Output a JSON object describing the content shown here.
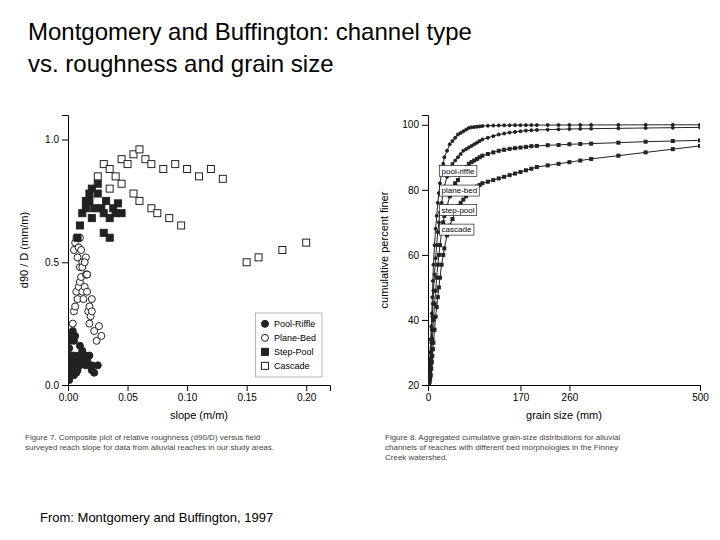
{
  "chart_data": [
    {
      "type": "scatter",
      "title": "Montgomery and Buffington: channel type\nvs. roughness and grain size",
      "caption": "Figure 7. Composite plot of relative roughness (d90/D) versus field\nsurveyed reach slope for data from alluvial reaches in our study areas.",
      "source": "From: Montgomery and Buffington, 1997",
      "x_label": "slope (m/m)",
      "y_label": "d90 / D (mm/m)",
      "xlim": [
        0.0,
        0.22
      ],
      "ylim": [
        0.0,
        1.1
      ],
      "xticks": [
        {
          "value": 0.0,
          "label": "0.00"
        },
        {
          "value": 0.05,
          "label": "0.05"
        },
        {
          "value": 0.1,
          "label": "0.10"
        },
        {
          "value": 0.15,
          "label": "0.15"
        },
        {
          "value": 0.2,
          "label": "0.20"
        }
      ],
      "yticks": [
        {
          "value": 0.0,
          "label": "0.0"
        },
        {
          "value": 0.5,
          "label": "0.5"
        },
        {
          "value": 1.0,
          "label": "1.0"
        }
      ],
      "grid": false,
      "legend": "lower-right",
      "series": [
        {
          "name": "Pool-Riffle",
          "color": "#222222",
          "marker": "circle",
          "x": [
            0.001,
            0.001,
            0.002,
            0.002,
            0.002,
            0.003,
            0.003,
            0.003,
            0.004,
            0.004,
            0.005,
            0.005,
            0.005,
            0.006,
            0.006,
            0.007,
            0.007,
            0.008,
            0.008,
            0.009,
            0.01,
            0.01,
            0.01,
            0.011,
            0.012,
            0.013,
            0.014,
            0.015,
            0.015,
            0.016,
            0.018,
            0.018,
            0.02,
            0.02,
            0.022,
            0.025,
            0.001,
            0.002,
            0.003,
            0.004,
            0.005,
            0.006
          ],
          "values": [
            0.02,
            0.04,
            0.06,
            0.08,
            0.1,
            0.05,
            0.08,
            0.12,
            0.06,
            0.1,
            0.04,
            0.08,
            0.12,
            0.06,
            0.1,
            0.05,
            0.08,
            0.06,
            0.1,
            0.12,
            0.08,
            0.12,
            0.16,
            0.1,
            0.14,
            0.1,
            0.12,
            0.08,
            0.12,
            0.1,
            0.08,
            0.12,
            0.06,
            0.08,
            0.05,
            0.08,
            0.15,
            0.18,
            0.2,
            0.22,
            0.18,
            0.2
          ]
        },
        {
          "name": "Plane-Bed",
          "color": "#222222",
          "marker": "circle-open",
          "x": [
            0.004,
            0.005,
            0.006,
            0.007,
            0.008,
            0.009,
            0.01,
            0.01,
            0.011,
            0.012,
            0.012,
            0.013,
            0.014,
            0.015,
            0.015,
            0.016,
            0.016,
            0.017,
            0.018,
            0.018,
            0.019,
            0.02,
            0.02,
            0.022,
            0.024,
            0.026,
            0.028,
            0.005,
            0.006,
            0.007,
            0.008,
            0.009,
            0.01,
            0.011,
            0.012,
            0.014,
            0.016
          ],
          "values": [
            0.25,
            0.3,
            0.32,
            0.38,
            0.35,
            0.4,
            0.42,
            0.48,
            0.44,
            0.38,
            0.5,
            0.35,
            0.4,
            0.45,
            0.52,
            0.38,
            0.45,
            0.3,
            0.25,
            0.32,
            0.28,
            0.3,
            0.35,
            0.22,
            0.18,
            0.24,
            0.2,
            0.55,
            0.58,
            0.6,
            0.52,
            0.56,
            0.6,
            0.55,
            0.48,
            0.5,
            0.45
          ]
        },
        {
          "name": "Step-Pool",
          "color": "#222222",
          "marker": "square",
          "x": [
            0.008,
            0.01,
            0.012,
            0.015,
            0.018,
            0.02,
            0.022,
            0.025,
            0.028,
            0.03,
            0.032,
            0.035,
            0.038,
            0.04,
            0.042,
            0.045,
            0.03,
            0.035,
            0.02,
            0.025,
            0.015,
            0.018
          ],
          "values": [
            0.6,
            0.65,
            0.7,
            0.72,
            0.75,
            0.68,
            0.72,
            0.78,
            0.72,
            0.7,
            0.75,
            0.68,
            0.72,
            0.7,
            0.74,
            0.7,
            0.62,
            0.6,
            0.8,
            0.82,
            0.75,
            0.78
          ]
        },
        {
          "name": "Cascade",
          "color": "#222222",
          "marker": "square-open",
          "x": [
            0.025,
            0.03,
            0.035,
            0.04,
            0.045,
            0.05,
            0.055,
            0.06,
            0.065,
            0.07,
            0.08,
            0.09,
            0.1,
            0.11,
            0.12,
            0.13,
            0.15,
            0.16,
            0.18,
            0.2,
            0.035,
            0.045,
            0.055,
            0.07,
            0.085,
            0.095,
            0.06,
            0.075
          ],
          "values": [
            0.85,
            0.9,
            0.88,
            0.85,
            0.92,
            0.9,
            0.94,
            0.96,
            0.92,
            0.9,
            0.88,
            0.9,
            0.88,
            0.85,
            0.88,
            0.84,
            0.5,
            0.52,
            0.55,
            0.58,
            0.8,
            0.82,
            0.78,
            0.72,
            0.68,
            0.65,
            0.75,
            0.7
          ]
        }
      ]
    },
    {
      "type": "line",
      "caption": "Figure 8. Aggregated cumulative grain-size distributions for alluvial\nchannels of reaches with different bed morphologies in the Finney\nCreek watershed.",
      "x_label": "grain size (mm)",
      "y_label": "cumulative percent finer",
      "xlim": [
        0,
        500
      ],
      "ylim": [
        20,
        103
      ],
      "xticks": [
        0,
        170,
        260,
        500
      ],
      "yticks": [
        20,
        40,
        60,
        80,
        100
      ],
      "grid": false,
      "annotations": [
        {
          "text": "pool-riffle",
          "x": 25,
          "y": 85
        },
        {
          "text": "plane-bed",
          "x": 25,
          "y": 79
        },
        {
          "text": "step-pool",
          "x": 25,
          "y": 73
        },
        {
          "text": "cascade",
          "x": 25,
          "y": 67
        }
      ],
      "series": [
        {
          "color": "#222222",
          "marker": "circle",
          "line_style": "solid",
          "x": [
            1,
            2,
            3,
            4,
            5,
            6,
            7,
            8,
            9,
            10,
            12,
            14,
            16,
            18,
            20,
            22,
            25,
            28,
            30,
            35,
            40,
            45,
            50,
            55,
            60,
            65,
            70,
            75,
            80,
            85,
            90,
            95,
            100,
            110,
            120,
            130,
            140,
            150,
            160,
            170,
            180,
            190,
            200,
            220,
            240,
            260,
            280,
            300,
            350,
            400,
            450,
            500
          ],
          "values": [
            22,
            24,
            27,
            30,
            34,
            38,
            42,
            47,
            52,
            57,
            63,
            68,
            72,
            76,
            79,
            82,
            85,
            88,
            90,
            92,
            94,
            95,
            96,
            97,
            97.5,
            98,
            98.5,
            99,
            99.2,
            99.3,
            99.4,
            99.5,
            99.6,
            99.7,
            99.75,
            99.8,
            99.82,
            99.84,
            99.86,
            99.87,
            99.88,
            99.89,
            99.9,
            99.91,
            99.92,
            99.93,
            99.94,
            99.95,
            99.96,
            99.97,
            99.98,
            99.99
          ]
        },
        {
          "color": "#222222",
          "marker": "circle",
          "line_style": "solid",
          "x": [
            1,
            2,
            3,
            4,
            5,
            6,
            7,
            8,
            9,
            10,
            12,
            14,
            16,
            18,
            20,
            22,
            25,
            28,
            30,
            35,
            40,
            45,
            50,
            55,
            60,
            65,
            70,
            75,
            80,
            85,
            90,
            95,
            100,
            110,
            120,
            130,
            140,
            150,
            160,
            170,
            180,
            190,
            200,
            220,
            240,
            260,
            280,
            300,
            350,
            400,
            450,
            500
          ],
          "values": [
            21,
            22,
            24,
            27,
            30,
            33,
            37,
            41,
            45,
            49,
            54,
            59,
            63,
            67,
            70,
            73,
            76,
            79,
            81,
            84,
            86,
            88,
            89,
            90,
            91,
            92,
            92.5,
            93,
            93.5,
            94,
            94.5,
            95,
            95.5,
            96,
            96.5,
            97,
            97.3,
            97.6,
            97.8,
            98.0,
            98.2,
            98.3,
            98.4,
            98.5,
            98.6,
            98.7,
            98.75,
            98.8,
            98.9,
            99.0,
            99.1,
            99.2
          ]
        },
        {
          "color": "#222222",
          "marker": "square",
          "line_style": "solid",
          "x": [
            1,
            2,
            3,
            4,
            5,
            6,
            7,
            8,
            9,
            10,
            12,
            14,
            16,
            18,
            20,
            22,
            25,
            28,
            30,
            35,
            40,
            45,
            50,
            55,
            60,
            65,
            70,
            75,
            80,
            85,
            90,
            95,
            100,
            110,
            120,
            130,
            140,
            150,
            160,
            170,
            180,
            190,
            200,
            220,
            240,
            260,
            280,
            300,
            350,
            400,
            450,
            500
          ],
          "values": [
            20,
            21,
            22,
            24,
            26,
            28,
            31,
            34,
            37,
            40,
            45,
            49,
            53,
            57,
            60,
            63,
            67,
            70,
            72,
            75,
            78,
            80,
            82,
            83,
            85,
            86,
            87,
            88,
            88.5,
            89,
            89.5,
            90,
            90.5,
            91,
            91.5,
            92,
            92.3,
            92.6,
            92.8,
            93.0,
            93.2,
            93.4,
            93.5,
            93.7,
            93.8,
            94.0,
            94.1,
            94.2,
            94.5,
            94.8,
            95.0,
            95.2
          ]
        },
        {
          "color": "#222222",
          "marker": "square",
          "line_style": "solid",
          "x": [
            1,
            2,
            3,
            4,
            5,
            6,
            7,
            8,
            9,
            10,
            12,
            14,
            16,
            18,
            20,
            22,
            25,
            28,
            30,
            35,
            40,
            45,
            50,
            55,
            60,
            65,
            70,
            75,
            80,
            85,
            90,
            95,
            100,
            110,
            120,
            130,
            140,
            150,
            160,
            170,
            180,
            190,
            200,
            220,
            240,
            260,
            280,
            300,
            350,
            400,
            450,
            500
          ],
          "values": [
            20,
            20,
            21,
            22,
            23,
            25,
            27,
            29,
            31,
            33,
            37,
            41,
            44,
            47,
            50,
            53,
            57,
            60,
            62,
            66,
            69,
            71,
            73,
            75,
            76,
            77,
            78,
            79,
            80,
            80.5,
            81,
            81.5,
            82,
            82.5,
            83,
            83.5,
            84,
            84.5,
            85,
            85.5,
            86,
            86.5,
            87,
            87.5,
            88,
            88.5,
            89,
            89.5,
            90.5,
            91.5,
            92.5,
            93.5
          ]
        }
      ]
    }
  ]
}
